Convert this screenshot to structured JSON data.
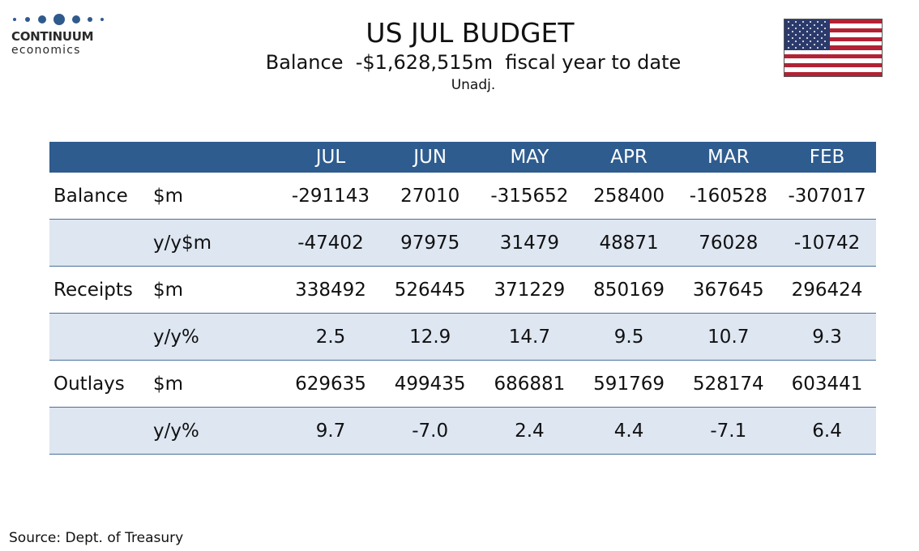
{
  "logo": {
    "name": "CONTINUUM",
    "sub": "economics"
  },
  "header": {
    "title": "US JUL BUDGET",
    "subtitle": "Balance  -$1,628,515m  fiscal year to date",
    "note": "Unadj."
  },
  "colors": {
    "header_band": "#2e5c8f",
    "row_shade": "#dde6f1",
    "rule": "#4a6f9c",
    "logo": "#2f5a8c"
  },
  "flag_icon": "us-flag-icon",
  "table": {
    "columns": [
      "JUL",
      "JUN",
      "MAY",
      "APR",
      "MAR",
      "FEB"
    ],
    "rows": [
      {
        "label": "Balance",
        "unit": "$m",
        "values": [
          "-291143",
          "27010",
          "-315652",
          "258400",
          "-160528",
          "-307017"
        ]
      },
      {
        "label": "",
        "unit": "y/y$m",
        "values": [
          "-47402",
          "97975",
          "31479",
          "48871",
          "76028",
          "-10742"
        ]
      },
      {
        "label": "Receipts",
        "unit": "$m",
        "values": [
          "338492",
          "526445",
          "371229",
          "850169",
          "367645",
          "296424"
        ]
      },
      {
        "label": "",
        "unit": "y/y%",
        "values": [
          "2.5",
          "12.9",
          "14.7",
          "9.5",
          "10.7",
          "9.3"
        ]
      },
      {
        "label": "Outlays",
        "unit": "$m",
        "values": [
          "629635",
          "499435",
          "686881",
          "591769",
          "528174",
          "603441"
        ]
      },
      {
        "label": "",
        "unit": "y/y%",
        "values": [
          "9.7",
          "-7.0",
          "2.4",
          "4.4",
          "-7.1",
          "6.4"
        ]
      }
    ]
  },
  "footer": {
    "source": "Source: Dept. of Treasury"
  }
}
